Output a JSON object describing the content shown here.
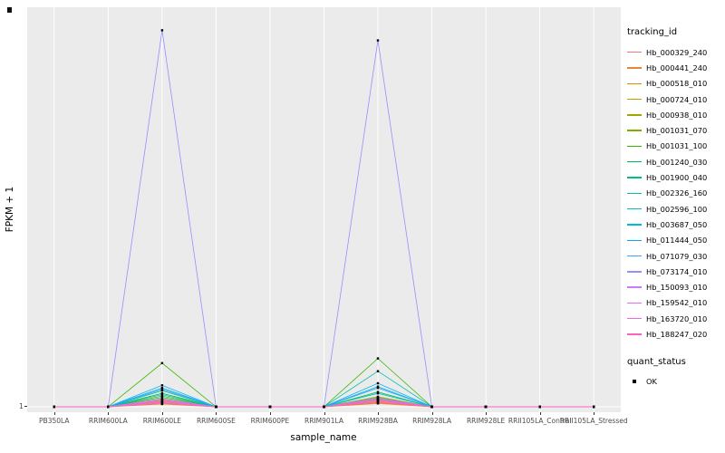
{
  "figure": {
    "x_axis_title": "sample_name",
    "y_axis_title": "FPKM + 1",
    "y_tick_label": "1"
  },
  "legend": {
    "title": "tracking_id",
    "entries": [
      {
        "label": "Hb_000329_240",
        "color": "#F8766D"
      },
      {
        "label": "Hb_000441_240",
        "color": "#EB8335"
      },
      {
        "label": "Hb_000518_010",
        "color": "#D89000"
      },
      {
        "label": "Hb_000724_010",
        "color": "#BF9C00"
      },
      {
        "label": "Hb_000938_010",
        "color": "#A3A500"
      },
      {
        "label": "Hb_001031_070",
        "color": "#7CAE00"
      },
      {
        "label": "Hb_001031_100",
        "color": "#39B600"
      },
      {
        "label": "Hb_001240_030",
        "color": "#00BB4E"
      },
      {
        "label": "Hb_001900_040",
        "color": "#00BF7D"
      },
      {
        "label": "Hb_002326_160",
        "color": "#00C1A3"
      },
      {
        "label": "Hb_002596_100",
        "color": "#00BFC4"
      },
      {
        "label": "Hb_003687_050",
        "color": "#00BAE0"
      },
      {
        "label": "Hb_011444_050",
        "color": "#00B0F6"
      },
      {
        "label": "Hb_071079_030",
        "color": "#35A2FF"
      },
      {
        "label": "Hb_073174_010",
        "color": "#9590FF"
      },
      {
        "label": "Hb_150093_010",
        "color": "#C77CFF"
      },
      {
        "label": "Hb_159542_010",
        "color": "#E76BF3"
      },
      {
        "label": "Hb_163720_010",
        "color": "#FA62DB"
      },
      {
        "label": "Hb_188247_020",
        "color": "#FF62BC"
      }
    ]
  },
  "quant_legend": {
    "title": "quant_status",
    "items": [
      {
        "label": "OK"
      }
    ]
  },
  "chart_data": {
    "type": "line",
    "title": "",
    "xlabel": "sample_name",
    "ylabel": "FPKM + 1",
    "ylim": [
      1,
      58
    ],
    "y_ticks": [
      1
    ],
    "grid": true,
    "legend_position": "right",
    "categories": [
      "PB350LA",
      "RRIM600LA",
      "RRIM600LE",
      "RRIM600SE",
      "RRIM600PE",
      "RRIM901LA",
      "RRIM928BA",
      "RRIM928LA",
      "RRIM928LE",
      "RRII105LA_Control",
      "RRII105LA_Stressed"
    ],
    "series": [
      {
        "name": "Hb_000329_240",
        "color": "#F8766D",
        "values": [
          1,
          1,
          2.0,
          1,
          1,
          1,
          1.8,
          1,
          1,
          1,
          1
        ]
      },
      {
        "name": "Hb_000441_240",
        "color": "#EB8335",
        "values": [
          1,
          1,
          1.6,
          1,
          1,
          1,
          1.5,
          1,
          1,
          1,
          1
        ]
      },
      {
        "name": "Hb_000518_010",
        "color": "#D89000",
        "values": [
          1,
          1,
          1.4,
          1,
          1,
          1,
          1.6,
          1,
          1,
          1,
          1
        ]
      },
      {
        "name": "Hb_000724_010",
        "color": "#BF9C00",
        "values": [
          1,
          1,
          1.8,
          1,
          1,
          1,
          2.0,
          1,
          1,
          1,
          1
        ]
      },
      {
        "name": "Hb_000938_010",
        "color": "#A3A500",
        "values": [
          1,
          1,
          2.2,
          1,
          1,
          1,
          2.4,
          1,
          1,
          1,
          1
        ]
      },
      {
        "name": "Hb_001031_070",
        "color": "#7CAE00",
        "values": [
          1,
          1,
          2.6,
          1,
          1,
          1,
          2.5,
          1,
          1,
          1,
          1
        ]
      },
      {
        "name": "Hb_001031_100",
        "color": "#39B600",
        "values": [
          1,
          1,
          7.5,
          1,
          1,
          1,
          8.2,
          1,
          1,
          1,
          1
        ]
      },
      {
        "name": "Hb_001240_030",
        "color": "#00BB4E",
        "values": [
          1,
          1,
          3.0,
          1,
          1,
          1,
          3.2,
          1,
          1,
          1,
          1
        ]
      },
      {
        "name": "Hb_001900_040",
        "color": "#00BF7D",
        "values": [
          1,
          1,
          2.4,
          1,
          1,
          1,
          2.2,
          1,
          1,
          1,
          1
        ]
      },
      {
        "name": "Hb_002326_160",
        "color": "#00C1A3",
        "values": [
          1,
          1,
          3.4,
          1,
          1,
          1,
          6.3,
          1,
          1,
          1,
          1
        ]
      },
      {
        "name": "Hb_002596_100",
        "color": "#00BFC4",
        "values": [
          1,
          1,
          2.8,
          1,
          1,
          1,
          3.0,
          1,
          1,
          1,
          1
        ]
      },
      {
        "name": "Hb_003687_050",
        "color": "#00BAE0",
        "values": [
          1,
          1,
          3.8,
          1,
          1,
          1,
          4.0,
          1,
          1,
          1,
          1
        ]
      },
      {
        "name": "Hb_011444_050",
        "color": "#00B0F6",
        "values": [
          1,
          1,
          4.2,
          1,
          1,
          1,
          4.5,
          1,
          1,
          1,
          1
        ]
      },
      {
        "name": "Hb_071079_030",
        "color": "#35A2FF",
        "values": [
          1,
          1,
          3.6,
          1,
          1,
          1,
          3.8,
          1,
          1,
          1,
          1
        ]
      },
      {
        "name": "Hb_073174_010",
        "color": "#9590FF",
        "values": [
          1,
          1,
          57.0,
          1,
          1,
          1,
          55.5,
          1,
          1,
          1,
          1
        ]
      },
      {
        "name": "Hb_150093_010",
        "color": "#C77CFF",
        "values": [
          1,
          1,
          2.1,
          1,
          1,
          1,
          2.3,
          1,
          1,
          1,
          1
        ]
      },
      {
        "name": "Hb_159542_010",
        "color": "#E76BF3",
        "values": [
          1,
          1,
          1.9,
          1,
          1,
          1,
          2.1,
          1,
          1,
          1,
          1
        ]
      },
      {
        "name": "Hb_163720_010",
        "color": "#FA62DB",
        "values": [
          1,
          1,
          1.7,
          1,
          1,
          1,
          1.9,
          1,
          1,
          1,
          1
        ]
      },
      {
        "name": "Hb_188247_020",
        "color": "#FF62BC",
        "values": [
          1,
          1,
          1.5,
          1,
          1,
          1,
          1.7,
          1,
          1,
          1,
          1
        ]
      }
    ]
  }
}
